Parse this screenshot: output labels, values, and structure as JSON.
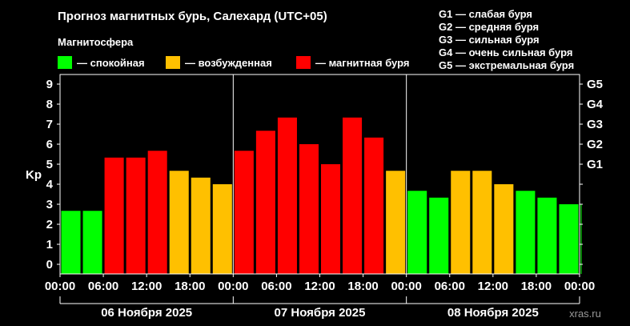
{
  "header": {
    "title": "Прогноз магнитных бурь, Салехард (UTC+05)",
    "subtitle": "Магнитосфера"
  },
  "legend": [
    {
      "label": "— спокойная",
      "color": "#00ff00"
    },
    {
      "label": "— возбужденная",
      "color": "#ffc000"
    },
    {
      "label": "— магнитная буря",
      "color": "#ff0000"
    }
  ],
  "g_scale": [
    "G1 — слабая буря",
    "G2 — средняя буря",
    "G3 — сильная буря",
    "G4 — очень сильная буря",
    "G5 — экстремальная буря"
  ],
  "watermark": "xras.ru",
  "chart_data": {
    "type": "bar",
    "ylabel": "Kp",
    "ylim": [
      0,
      9
    ],
    "yticks": [
      "0",
      "1",
      "2",
      "3",
      "4",
      "5",
      "6",
      "7",
      "8",
      "9"
    ],
    "right_ticks": [
      {
        "label": "G1",
        "value": 5
      },
      {
        "label": "G2",
        "value": 6
      },
      {
        "label": "G3",
        "value": 7
      },
      {
        "label": "G4",
        "value": 8
      },
      {
        "label": "G5",
        "value": 9
      }
    ],
    "x_tick_labels": [
      "00:00",
      "06:00",
      "12:00",
      "18:00",
      "00:00",
      "06:00",
      "12:00",
      "18:00",
      "00:00",
      "06:00",
      "12:00",
      "18:00",
      "00:00"
    ],
    "days": [
      "06 Ноября 2025",
      "07 Ноября 2025",
      "08 Ноября 2025"
    ],
    "bar_interval_hours": 3,
    "values": [
      2.67,
      2.67,
      5.33,
      5.33,
      5.67,
      4.67,
      4.33,
      4.0,
      5.67,
      6.67,
      7.33,
      6.0,
      5.0,
      7.33,
      6.33,
      4.67,
      3.67,
      3.33,
      4.67,
      4.67,
      4.0,
      3.67,
      3.33,
      3.0,
      3.0
    ],
    "levels": [
      "calm",
      "calm",
      "storm",
      "storm",
      "storm",
      "active",
      "active",
      "active",
      "storm",
      "storm",
      "storm",
      "storm",
      "storm",
      "storm",
      "storm",
      "active",
      "calm",
      "calm",
      "active",
      "active",
      "active",
      "calm",
      "calm",
      "calm",
      "calm"
    ],
    "colors": {
      "calm": "#00ff00",
      "active": "#ffc000",
      "storm": "#ff0000"
    },
    "grid": false
  }
}
